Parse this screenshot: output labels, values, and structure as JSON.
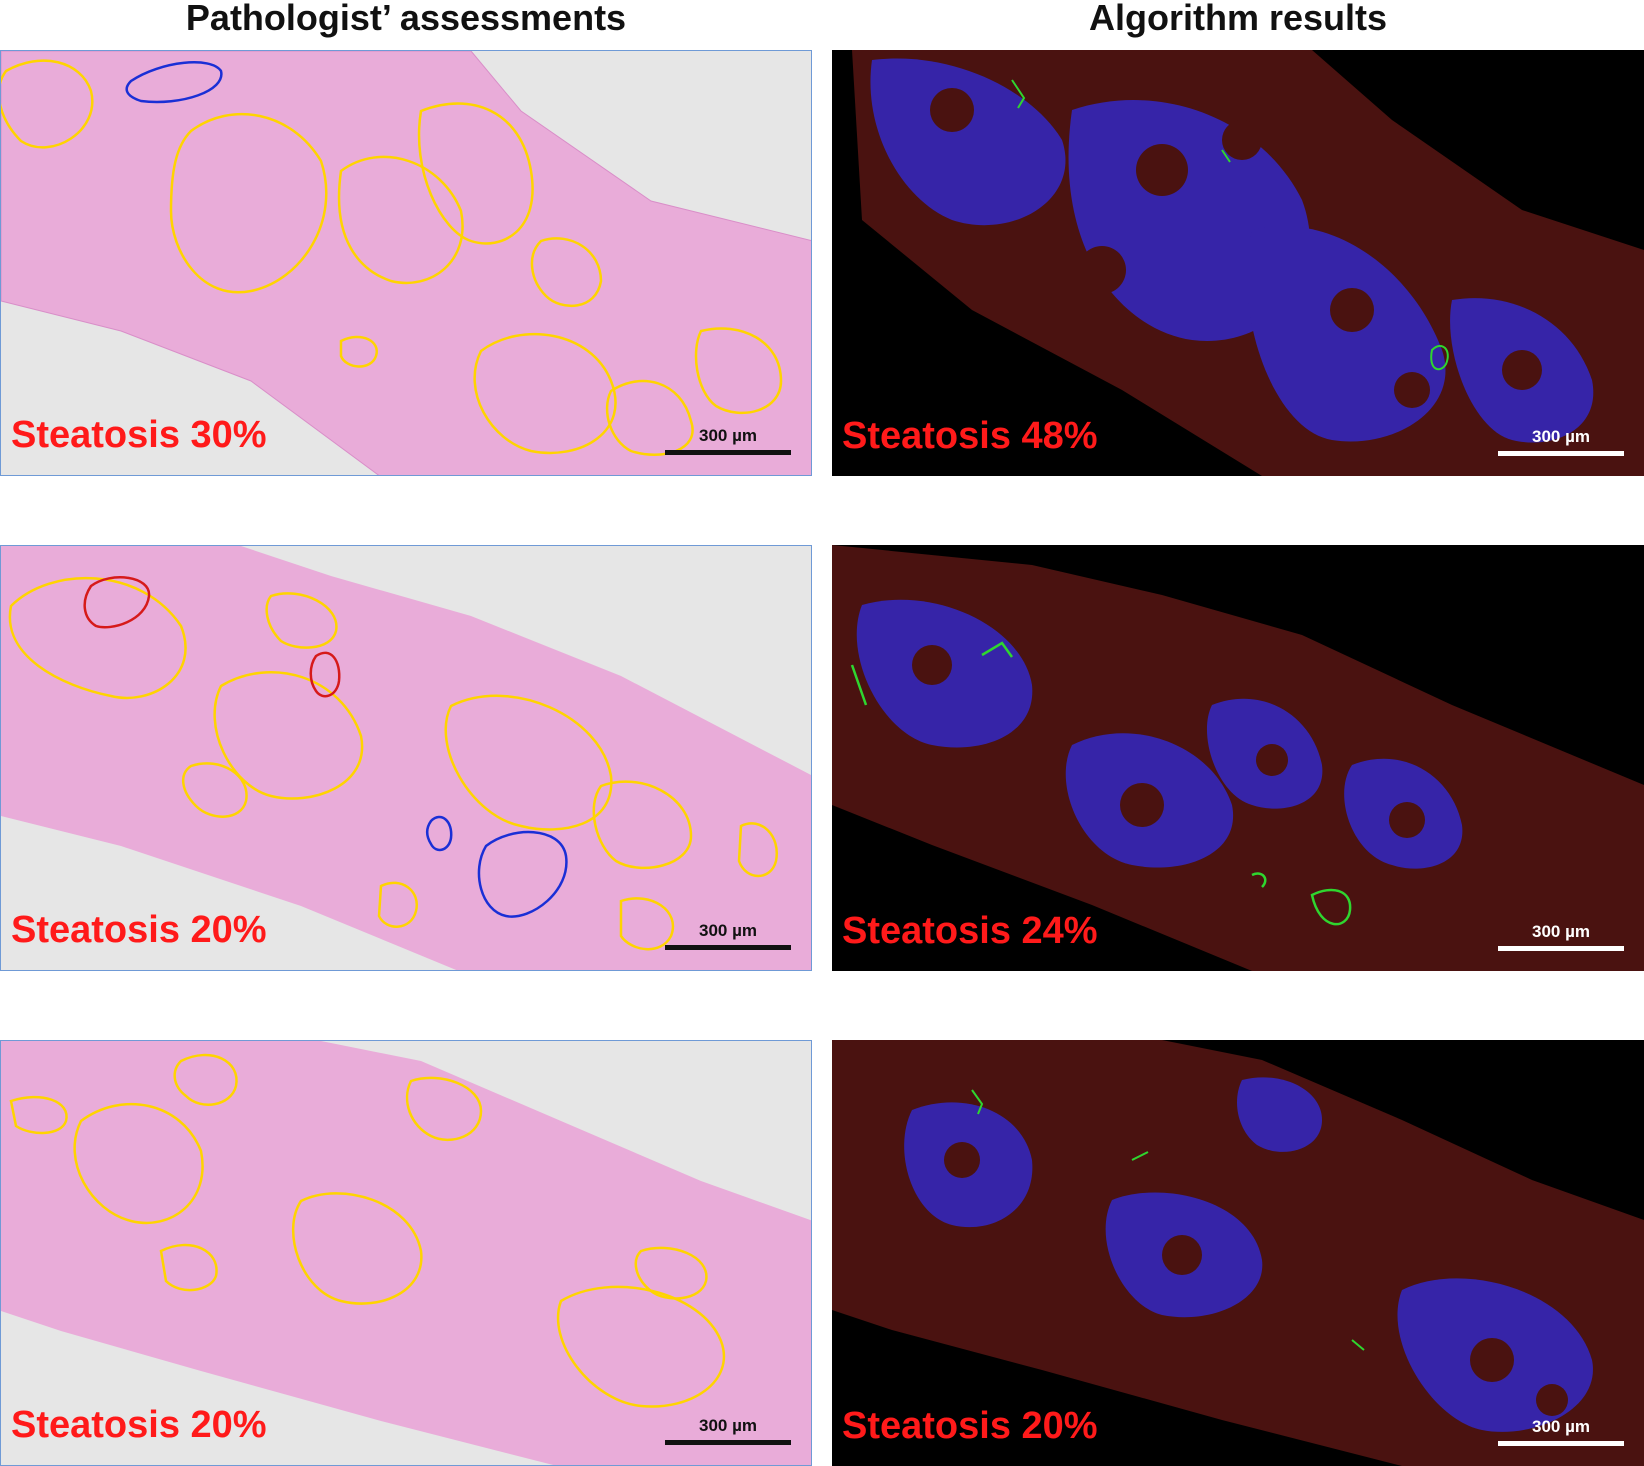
{
  "headers": {
    "left": "Pathologist’ assessments",
    "right": "Algorithm results"
  },
  "rows": [
    {
      "pathologist": {
        "steatosis": "Steatosis 30%",
        "scale": "300 µm"
      },
      "algorithm": {
        "steatosis": "Steatosis 48%",
        "scale": "300 µm"
      }
    },
    {
      "pathologist": {
        "steatosis": "Steatosis 20%",
        "scale": "300 µm"
      },
      "algorithm": {
        "steatosis": "Steatosis 24%",
        "scale": "300 µm"
      }
    },
    {
      "pathologist": {
        "steatosis": "Steatosis 20%",
        "scale": "300 µm"
      },
      "algorithm": {
        "steatosis": "Steatosis 20%",
        "scale": "300 µm"
      }
    }
  ],
  "colors": {
    "steatosis_text": "#ff1a1a",
    "fat_outline": "#ffd400",
    "blue_outline": "#1a2fd6",
    "red_outline": "#d61a1a",
    "tissue_pink": "#e6a6d6",
    "fluor_blue": "#3a2aa8",
    "fluor_red": "#5a1410",
    "fibrosis_green": "#2fd62f"
  }
}
